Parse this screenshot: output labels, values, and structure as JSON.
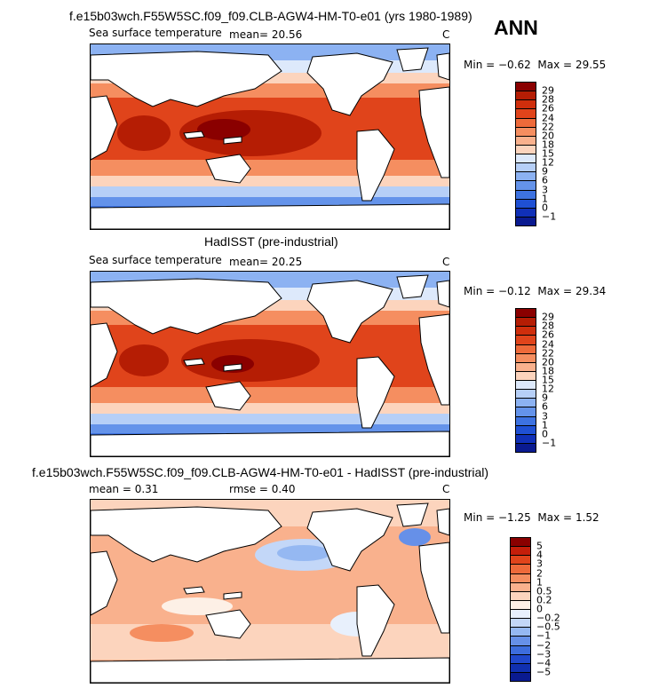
{
  "season": "ANN",
  "panels": [
    {
      "title": "f.e15b03wch.F55W5SC.f09_f09.CLB-AGW4-HM-T0-e01 (yrs 1980-1989)",
      "variable": "Sea surface temperature",
      "mean_text": "mean=  20.56",
      "units": "C",
      "min_label": "Min =",
      "min_value": "−0.62",
      "max_label": "Max =",
      "max_value": "29.55",
      "colorbar": {
        "labels": [
          "29",
          "28",
          "26",
          "24",
          "22",
          "20",
          "18",
          "15",
          "12",
          "9",
          "6",
          "3",
          "1",
          "0",
          "−1"
        ],
        "colors": [
          "#8a0000",
          "#b51d04",
          "#cf2e0c",
          "#e0441b",
          "#ee6a3a",
          "#f58e60",
          "#f9b18d",
          "#fcd4bd",
          "#dde9fb",
          "#b6cff7",
          "#8cb2f2",
          "#6493ea",
          "#3d72e1",
          "#1f50d4",
          "#1030b8",
          "#0a1a90"
        ]
      }
    },
    {
      "title": "HadISST (pre-industrial)",
      "variable": "Sea surface temperature",
      "mean_text": "mean=  20.25",
      "units": "C",
      "min_label": "Min =",
      "min_value": "−0.12",
      "max_label": "Max =",
      "max_value": "29.34",
      "colorbar": {
        "labels": [
          "29",
          "28",
          "26",
          "24",
          "22",
          "20",
          "18",
          "15",
          "12",
          "9",
          "6",
          "3",
          "1",
          "0",
          "−1"
        ],
        "colors": [
          "#8a0000",
          "#b51d04",
          "#cf2e0c",
          "#e0441b",
          "#ee6a3a",
          "#f58e60",
          "#f9b18d",
          "#fcd4bd",
          "#dde9fb",
          "#b6cff7",
          "#8cb2f2",
          "#6493ea",
          "#3d72e1",
          "#1f50d4",
          "#1030b8",
          "#0a1a90"
        ]
      }
    },
    {
      "title": "f.e15b03wch.F55W5SC.f09_f09.CLB-AGW4-HM-T0-e01 - HadISST (pre-industrial)",
      "mean_text": "mean =   0.31",
      "rmse_text": "rmse =   0.40",
      "units": "C",
      "min_label": "Min =",
      "min_value": "−1.25",
      "max_label": "Max =",
      "max_value": "1.52",
      "colorbar": {
        "labels": [
          "5",
          "4",
          "3",
          "2",
          "1",
          "0.5",
          "0.2",
          "0",
          "−0.2",
          "−0.5",
          "−1",
          "−2",
          "−3",
          "−4",
          "−5"
        ],
        "colors": [
          "#8a0000",
          "#c41e0a",
          "#e0441b",
          "#ee6a3a",
          "#f58e60",
          "#f9b18d",
          "#fcd4bd",
          "#fdf0e6",
          "#e8f0fc",
          "#c3d7f8",
          "#95b8f2",
          "#6690e8",
          "#3d6ddd",
          "#2048cc",
          "#1030b0",
          "#0a1a90"
        ]
      }
    }
  ]
}
